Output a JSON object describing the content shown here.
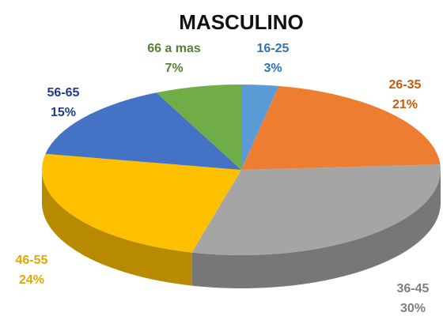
{
  "chart_data": {
    "type": "pie",
    "title": "MASCULINO",
    "categories": [
      "16-25",
      "26-35",
      "36-45",
      "46-55",
      "56-65",
      "66 a mas"
    ],
    "values": [
      3,
      21,
      30,
      24,
      15,
      7
    ],
    "value_labels": [
      "3%",
      "21%",
      "30%",
      "24%",
      "15%",
      "7%"
    ],
    "colors": [
      "#5b9bd5",
      "#ed7d31",
      "#a5a5a5",
      "#ffc000",
      "#4472c4",
      "#70ad47"
    ],
    "label_colors": [
      "#2e75b6",
      "#c55a11",
      "#7f7f7f",
      "#e0a800",
      "#1f3c88",
      "#548235"
    ]
  }
}
